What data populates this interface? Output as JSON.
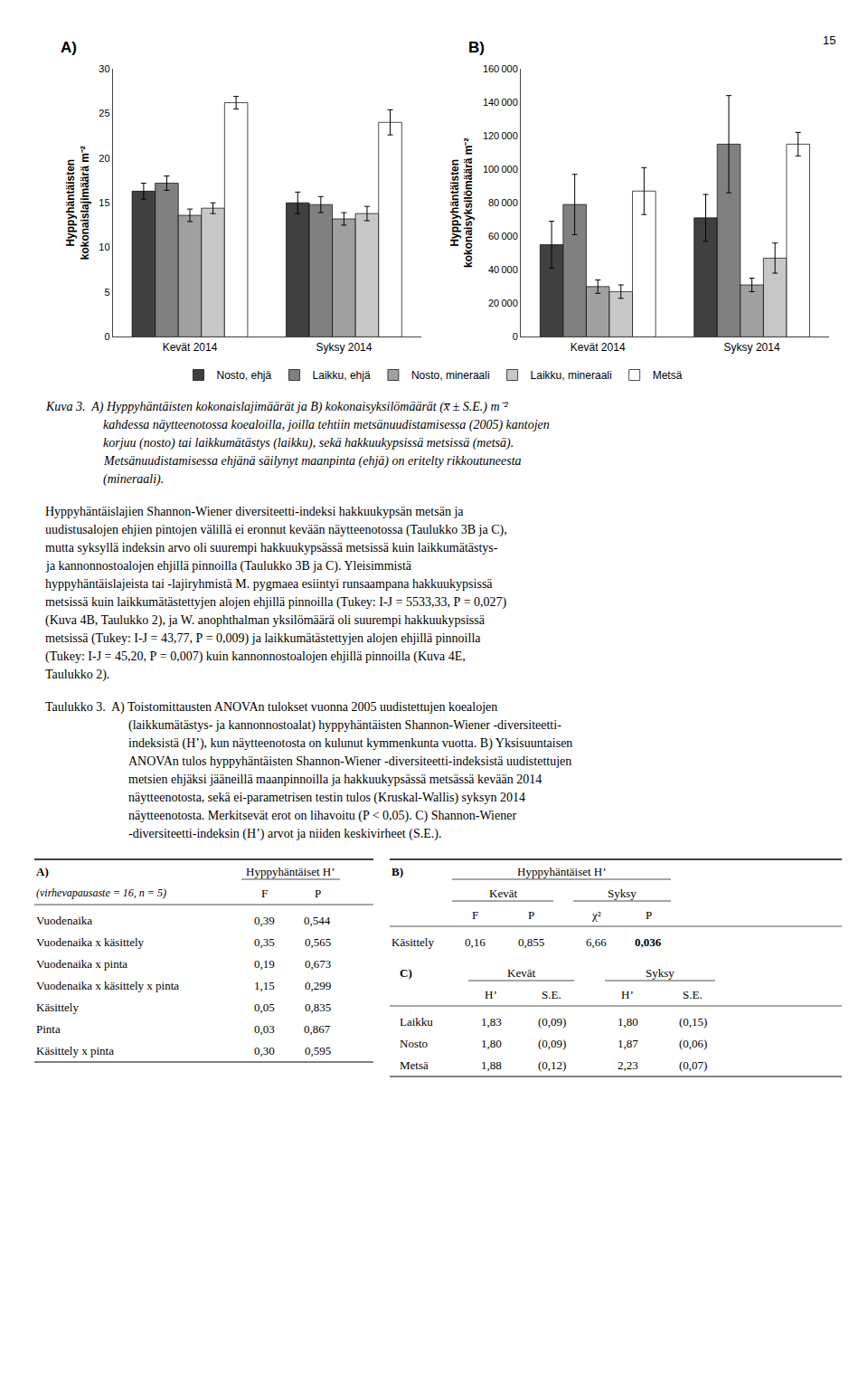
{
  "page_number": "15",
  "chart_data": [
    {
      "type": "bar",
      "title": "A)",
      "ylabel": "Hyppyhäntäisten\nkokonaislajimäärä m⁻²",
      "categories": [
        "Kevät 2014",
        "Syksy 2014"
      ],
      "series": [
        {
          "name": "Nosto, ehjä",
          "color": "#404040",
          "values": [
            16.3,
            15.0
          ],
          "errors": [
            0.9,
            1.2
          ]
        },
        {
          "name": "Laikku, ehjä",
          "color": "#808080",
          "values": [
            17.2,
            14.8
          ],
          "errors": [
            0.8,
            0.9
          ]
        },
        {
          "name": "Nosto, mineraali",
          "color": "#a0a0a0",
          "values": [
            13.6,
            13.2
          ],
          "errors": [
            0.7,
            0.7
          ]
        },
        {
          "name": "Laikku, mineraali",
          "color": "#c8c8c8",
          "values": [
            14.4,
            13.8
          ],
          "errors": [
            0.6,
            0.8
          ]
        },
        {
          "name": "Metsä",
          "color": "#ffffff",
          "values": [
            26.2,
            24.0
          ],
          "errors": [
            0.7,
            1.4
          ]
        }
      ],
      "ylim": [
        0,
        30
      ],
      "yticks": [
        0,
        5,
        10,
        15,
        20,
        25,
        30
      ],
      "grid": false,
      "legend": "bottom"
    },
    {
      "type": "bar",
      "title": "B)",
      "ylabel": "Hyppyhäntäisten\nkokonaisyksilömäärä m⁻²",
      "categories": [
        "Kevät 2014",
        "Syksy 2014"
      ],
      "series": [
        {
          "name": "Nosto, ehjä",
          "color": "#404040",
          "values": [
            55000,
            71000
          ],
          "errors": [
            14000,
            14000
          ]
        },
        {
          "name": "Laikku, ehjä",
          "color": "#808080",
          "values": [
            79000,
            115000
          ],
          "errors": [
            18000,
            29000
          ]
        },
        {
          "name": "Nosto, mineraali",
          "color": "#a0a0a0",
          "values": [
            30000,
            31000
          ],
          "errors": [
            4000,
            4000
          ]
        },
        {
          "name": "Laikku, mineraali",
          "color": "#c8c8c8",
          "values": [
            27000,
            47000
          ],
          "errors": [
            4000,
            9000
          ]
        },
        {
          "name": "Metsä",
          "color": "#ffffff",
          "values": [
            87000,
            115000
          ],
          "errors": [
            14000,
            7000
          ]
        }
      ],
      "ylim": [
        0,
        160000
      ],
      "yticks": [
        0,
        {
          "value": 20000,
          "label": "20 000"
        },
        {
          "value": 40000,
          "label": "40 000"
        },
        {
          "value": 60000,
          "label": "60 000"
        },
        {
          "value": 80000,
          "label": "80 000"
        },
        {
          "value": 100000,
          "label": "100 000"
        },
        {
          "value": 120000,
          "label": "120 000"
        },
        {
          "value": 140000,
          "label": "140 000"
        },
        {
          "value": 160000,
          "label": "160 000"
        }
      ],
      "grid": false
    },
    {
      "type": "table",
      "title": "A)",
      "column_groups": [
        {
          "label": "Hyppyhäntäiset H’",
          "columns": [
            "F",
            "P"
          ]
        }
      ],
      "row_header": "(virhevapausaste = 16, n = 5)",
      "rows": [
        [
          "Vuodenaika",
          "0,39",
          "0,544"
        ],
        [
          "Vuodenaika x käsittely",
          "0,35",
          "0,565"
        ],
        [
          "Vuodenaika x pinta",
          "0,19",
          "0,673"
        ],
        [
          "Vuodenaika x käsittely x pinta",
          "1,15",
          "0,299"
        ],
        [
          "Käsittely",
          "0,05",
          "0,835"
        ],
        [
          "Pinta",
          "0,03",
          "0,867"
        ],
        [
          "Käsittely x pinta",
          "0,30",
          "0,595"
        ]
      ]
    },
    {
      "type": "table",
      "title": "B)",
      "super_header": "Hyppyhäntäiset H’",
      "column_groups": [
        {
          "label": "Kevät",
          "columns": [
            "F",
            "P"
          ]
        },
        {
          "label": "Syksy",
          "columns": [
            "χ²",
            "P"
          ]
        }
      ],
      "rows": [
        [
          "Käsittely",
          "0,16",
          "0,855",
          "6,66",
          "0,036"
        ]
      ],
      "bold_cells": [
        [
          0,
          4
        ]
      ]
    },
    {
      "type": "table",
      "title": "C)",
      "column_groups": [
        {
          "label": "Kevät",
          "columns": [
            "H’",
            "S.E."
          ]
        },
        {
          "label": "Syksy",
          "columns": [
            "H’",
            "S.E."
          ]
        }
      ],
      "rows": [
        [
          "Laikku",
          "1,83",
          "(0,09)",
          "1,80",
          "(0,15)"
        ],
        [
          "Nosto",
          "1,80",
          "(0,09)",
          "1,87",
          "(0,06)"
        ],
        [
          "Metsä",
          "1,88",
          "(0,12)",
          "2,23",
          "(0,07)"
        ]
      ]
    }
  ],
  "caption": [
    "Kuva 3.  A) Hyppyhäntäisten kokonaislajimäärät ja B) kokonaisyksilömäärät (x̅ ± S.E.) m⁻²",
    "kahdessa näytteenotossa koealoilla, joilla tehtiin metsänuudistamisessa (2005) kantojen",
    "korjuu (nosto) tai laikkumätästys (laikku), sekä hakkuukypsissä metsissä (metsä).",
    "Metsänuudistamisessa ehjänä säilynyt maanpinta (ehjä) on eritelty rikkoutuneesta",
    "(mineraali)."
  ],
  "body": [
    "Hyppyhäntäislajien Shannon-Wiener diversiteetti-indeksi hakkuukypsän metsän ja",
    "uudistusalojen ehjien pintojen välillä ei eronnut kevään näytteenotossa (Taulukko 3B ja C),",
    "mutta syksyllä indeksin arvo oli suurempi hakkuukypsässä metsissä kuin laikkumätästys-",
    "ja kannonnostoalojen ehjillä pinnoilla (Taulukko 3B ja C). Yleisimmistä",
    "hyppyhäntäislajeista tai -lajiryhmistä M. pygmaea esiintyi runsaampana hakkuukypsissä",
    "metsissä kuin laikkumätästettyjen alojen ehjillä pinnoilla (Tukey: I-J = 5533,33, P = 0,027)",
    "(Kuva 4B, Taulukko 2), ja W. anophthalman yksilömäärä oli suurempi hakkuukypsissä",
    "metsissä (Tukey: I-J = 43,77, P = 0,009) ja laikkumätästettyjen alojen ehjillä pinnoilla",
    "(Tukey: I-J = 45,20, P = 0,007) kuin kannonnostoalojen ehjillä pinnoilla (Kuva 4E,",
    "Taulukko 2)."
  ],
  "table_caption": [
    "Taulukko 3.  A) Toistomittausten ANOVAn tulokset vuonna 2005 uudistettujen koealojen",
    "(laikkumätästys- ja kannonnostoalat) hyppyhäntäisten Shannon-Wiener -diversiteetti-",
    "indeksistä (H’), kun näytteenotosta on kulunut kymmenkunta vuotta. B) Yksisuuntaisen",
    "ANOVAn tulos hyppyhäntäisten Shannon-Wiener -diversiteetti-indeksistä uudistettujen",
    "metsien ehjäksi jääneillä maanpinnoilla ja hakkuukypsässä metsässä kevään 2014",
    "näytteenotosta, sekä ei-parametrisen testin tulos (Kruskal-Wallis) syksyn 2014",
    "näytteenotosta. Merkitsevät erot on lihavoitu (P < 0,05). C) Shannon-Wiener",
    "-diversiteetti-indeksin (H’) arvot ja niiden keskivirheet (S.E.)."
  ]
}
